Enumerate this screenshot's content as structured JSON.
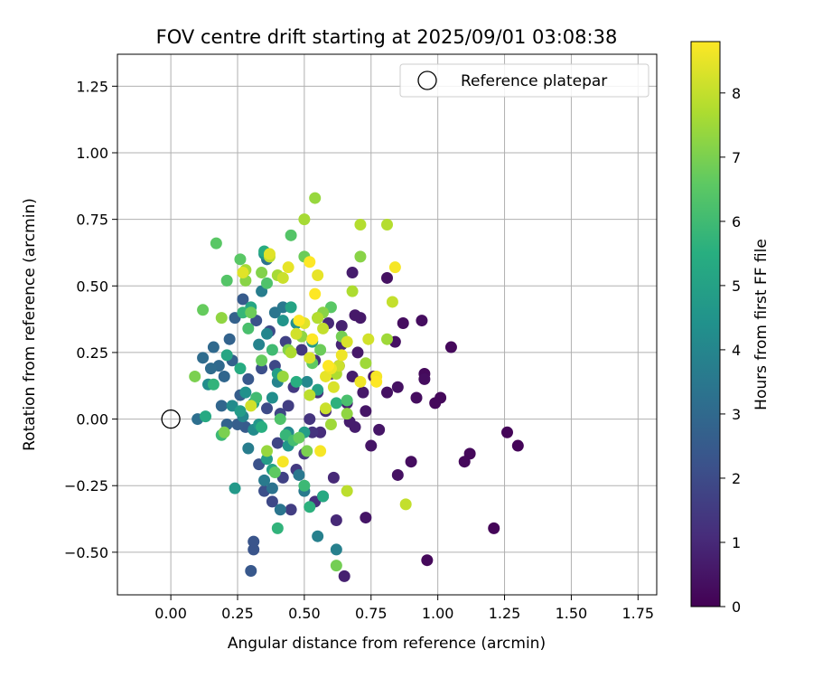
{
  "chart_data": {
    "type": "scatter",
    "title": "FOV centre drift starting at 2025/09/01 03:08:38",
    "xlabel": "Angular distance from reference (arcmin)",
    "ylabel": "Rotation from reference (arcmin)",
    "xlim": [
      -0.2,
      1.82
    ],
    "ylim": [
      -0.66,
      1.37
    ],
    "xticks": [
      "0.00",
      "0.25",
      "0.50",
      "0.75",
      "1.00",
      "1.25",
      "1.50",
      "1.75"
    ],
    "xtick_values": [
      0,
      0.25,
      0.5,
      0.75,
      1.0,
      1.25,
      1.5,
      1.75
    ],
    "yticks": [
      "−0.50",
      "−0.25",
      "0.00",
      "0.25",
      "0.50",
      "0.75",
      "1.00",
      "1.25"
    ],
    "ytick_values": [
      -0.5,
      -0.25,
      0,
      0.25,
      0.5,
      0.75,
      1.0,
      1.25
    ],
    "grid": true,
    "colormap": "viridis",
    "colorbar": {
      "label": "Hours from first FF file",
      "min": 0,
      "max": 8.8,
      "ticks": [
        "0",
        "1",
        "2",
        "3",
        "4",
        "5",
        "6",
        "7",
        "8"
      ],
      "tick_values": [
        0,
        1,
        2,
        3,
        4,
        5,
        6,
        7,
        8
      ]
    },
    "legend": {
      "position": "top-right",
      "entries": [
        {
          "label": "Reference platepar",
          "marker": "open-circle"
        }
      ]
    },
    "reference_point": {
      "x": 0,
      "y": 0
    },
    "points": [
      [
        1.3,
        -0.1,
        0.1
      ],
      [
        1.26,
        -0.05,
        0.1
      ],
      [
        1.21,
        -0.41,
        0.1
      ],
      [
        1.12,
        -0.13,
        0.2
      ],
      [
        1.1,
        -0.16,
        0.2
      ],
      [
        1.05,
        0.27,
        0.2
      ],
      [
        1.01,
        0.08,
        0.2
      ],
      [
        0.99,
        0.06,
        0.2
      ],
      [
        0.96,
        -0.53,
        0.2
      ],
      [
        0.95,
        0.17,
        0.2
      ],
      [
        0.95,
        0.15,
        0.3
      ],
      [
        0.94,
        0.37,
        0.3
      ],
      [
        0.92,
        0.08,
        0.3
      ],
      [
        0.9,
        -0.16,
        0.3
      ],
      [
        0.87,
        0.36,
        0.3
      ],
      [
        0.85,
        -0.21,
        0.4
      ],
      [
        0.85,
        0.12,
        0.4
      ],
      [
        0.84,
        0.29,
        0.4
      ],
      [
        0.81,
        0.53,
        0.4
      ],
      [
        0.81,
        0.1,
        0.4
      ],
      [
        0.78,
        -0.04,
        0.5
      ],
      [
        0.76,
        0.16,
        0.5
      ],
      [
        0.75,
        -0.1,
        0.5
      ],
      [
        0.73,
        -0.37,
        0.5
      ],
      [
        0.73,
        0.03,
        0.5
      ],
      [
        0.72,
        0.1,
        0.6
      ],
      [
        0.71,
        0.38,
        0.6
      ],
      [
        0.7,
        0.25,
        0.6
      ],
      [
        0.69,
        0.39,
        0.6
      ],
      [
        0.69,
        -0.03,
        0.7
      ],
      [
        0.68,
        0.55,
        0.7
      ],
      [
        0.68,
        0.16,
        0.7
      ],
      [
        0.67,
        -0.01,
        0.7
      ],
      [
        0.66,
        0.06,
        0.8
      ],
      [
        0.65,
        -0.59,
        0.8
      ],
      [
        0.64,
        0.35,
        0.8
      ],
      [
        0.64,
        0.28,
        0.9
      ],
      [
        0.63,
        0.2,
        0.9
      ],
      [
        0.62,
        -0.38,
        1.0
      ],
      [
        0.61,
        -0.22,
        1.0
      ],
      [
        0.6,
        0.17,
        1.0
      ],
      [
        0.59,
        0.36,
        1.0
      ],
      [
        0.58,
        0.03,
        1.1
      ],
      [
        0.57,
        -0.29,
        1.1
      ],
      [
        0.56,
        -0.05,
        1.1
      ],
      [
        0.55,
        0.1,
        1.2
      ],
      [
        0.54,
        -0.31,
        1.2
      ],
      [
        0.54,
        0.22,
        1.2
      ],
      [
        0.53,
        -0.05,
        1.3
      ],
      [
        0.52,
        0.0,
        1.3
      ],
      [
        0.5,
        -0.13,
        1.4
      ],
      [
        0.49,
        0.26,
        1.4
      ],
      [
        0.47,
        -0.19,
        1.5
      ],
      [
        0.46,
        0.12,
        1.5
      ],
      [
        0.45,
        -0.34,
        1.6
      ],
      [
        0.44,
        0.05,
        1.6
      ],
      [
        0.43,
        0.29,
        1.7
      ],
      [
        0.42,
        -0.22,
        1.7
      ],
      [
        0.41,
        0.02,
        1.8
      ],
      [
        0.4,
        -0.09,
        1.8
      ],
      [
        0.39,
        0.2,
        1.9
      ],
      [
        0.38,
        -0.31,
        1.9
      ],
      [
        0.37,
        0.33,
        2.0
      ],
      [
        0.36,
        0.04,
        2.0
      ],
      [
        0.35,
        -0.27,
        2.1
      ],
      [
        0.34,
        0.19,
        2.1
      ],
      [
        0.33,
        -0.17,
        2.2
      ],
      [
        0.32,
        0.37,
        2.2
      ],
      [
        0.31,
        -0.49,
        2.3
      ],
      [
        0.31,
        -0.46,
        2.3
      ],
      [
        0.3,
        -0.57,
        2.4
      ],
      [
        0.29,
        0.15,
        2.4
      ],
      [
        0.28,
        -0.03,
        2.5
      ],
      [
        0.27,
        0.45,
        2.5
      ],
      [
        0.26,
        0.09,
        2.6
      ],
      [
        0.25,
        -0.02,
        2.6
      ],
      [
        0.24,
        0.38,
        2.7
      ],
      [
        0.23,
        0.22,
        2.7
      ],
      [
        0.22,
        0.3,
        2.8
      ],
      [
        0.21,
        -0.02,
        2.8
      ],
      [
        0.2,
        0.16,
        2.9
      ],
      [
        0.19,
        0.05,
        2.9
      ],
      [
        0.18,
        0.2,
        3.0
      ],
      [
        0.16,
        0.27,
        3.0
      ],
      [
        0.15,
        0.19,
        3.1
      ],
      [
        0.12,
        0.23,
        3.1
      ],
      [
        0.1,
        0.0,
        3.2
      ],
      [
        0.36,
        0.6,
        3.3
      ],
      [
        0.38,
        -0.26,
        3.3
      ],
      [
        0.39,
        0.4,
        3.4
      ],
      [
        0.41,
        -0.34,
        3.4
      ],
      [
        0.42,
        0.42,
        3.5
      ],
      [
        0.48,
        -0.21,
        3.5
      ],
      [
        0.5,
        -0.27,
        3.6
      ],
      [
        0.35,
        -0.23,
        3.6
      ],
      [
        0.29,
        -0.11,
        3.7
      ],
      [
        0.34,
        0.48,
        3.7
      ],
      [
        0.55,
        -0.44,
        3.8
      ],
      [
        0.62,
        -0.49,
        3.8
      ],
      [
        0.4,
        0.14,
        3.9
      ],
      [
        0.33,
        0.28,
        3.9
      ],
      [
        0.27,
        0.01,
        4.0
      ],
      [
        0.36,
        0.32,
        4.0
      ],
      [
        0.44,
        -0.05,
        4.1
      ],
      [
        0.51,
        0.14,
        4.1
      ],
      [
        0.23,
        0.05,
        4.2
      ],
      [
        0.31,
        -0.04,
        4.2
      ],
      [
        0.14,
        0.13,
        4.3
      ],
      [
        0.38,
        0.08,
        4.3
      ],
      [
        0.47,
        0.36,
        4.4
      ],
      [
        0.28,
        0.1,
        4.4
      ],
      [
        0.42,
        0.37,
        4.5
      ],
      [
        0.35,
        0.62,
        4.5
      ],
      [
        0.33,
        -0.02,
        4.6
      ],
      [
        0.44,
        -0.1,
        4.6
      ],
      [
        0.24,
        -0.26,
        4.7
      ],
      [
        0.53,
        0.29,
        4.7
      ],
      [
        0.26,
        0.03,
        4.8
      ],
      [
        0.36,
        -0.15,
        4.8
      ],
      [
        0.4,
        0.17,
        4.9
      ],
      [
        0.5,
        -0.05,
        4.9
      ],
      [
        0.55,
        0.11,
        5.0
      ],
      [
        0.31,
        0.06,
        5.0
      ],
      [
        0.45,
        0.42,
        5.1
      ],
      [
        0.38,
        -0.19,
        5.1
      ],
      [
        0.3,
        0.42,
        5.2
      ],
      [
        0.21,
        0.24,
        5.2
      ],
      [
        0.13,
        0.01,
        5.3
      ],
      [
        0.57,
        -0.29,
        5.3
      ],
      [
        0.35,
        0.63,
        5.4
      ],
      [
        0.26,
        0.19,
        5.4
      ],
      [
        0.34,
        -0.03,
        5.5
      ],
      [
        0.47,
        0.14,
        5.5
      ],
      [
        0.52,
        -0.33,
        5.6
      ],
      [
        0.62,
        0.06,
        5.6
      ],
      [
        0.16,
        0.13,
        5.7
      ],
      [
        0.4,
        -0.41,
        5.7
      ],
      [
        0.27,
        0.4,
        5.8
      ],
      [
        0.43,
        -0.06,
        5.8
      ],
      [
        0.5,
        -0.25,
        5.9
      ],
      [
        0.19,
        -0.06,
        5.9
      ],
      [
        0.32,
        0.08,
        6.0
      ],
      [
        0.38,
        0.26,
        6.0
      ],
      [
        0.46,
        -0.08,
        6.1
      ],
      [
        0.55,
        0.38,
        6.1
      ],
      [
        0.66,
        0.07,
        6.2
      ],
      [
        0.29,
        0.34,
        6.2
      ],
      [
        0.36,
        0.51,
        6.3
      ],
      [
        0.41,
        0.0,
        6.3
      ],
      [
        0.21,
        0.52,
        6.4
      ],
      [
        0.45,
        0.69,
        6.4
      ],
      [
        0.26,
        0.6,
        6.5
      ],
      [
        0.17,
        0.66,
        6.5
      ],
      [
        0.6,
        0.42,
        6.5
      ],
      [
        0.53,
        0.21,
        6.6
      ],
      [
        0.39,
        -0.2,
        6.6
      ],
      [
        0.34,
        0.22,
        6.7
      ],
      [
        0.48,
        -0.07,
        6.7
      ],
      [
        0.12,
        0.41,
        6.7
      ],
      [
        0.3,
        0.4,
        6.8
      ],
      [
        0.56,
        0.26,
        6.8
      ],
      [
        0.5,
        0.61,
        6.8
      ],
      [
        0.64,
        0.31,
        6.9
      ],
      [
        0.62,
        -0.55,
        6.9
      ],
      [
        0.2,
        -0.05,
        7.0
      ],
      [
        0.09,
        0.16,
        7.0
      ],
      [
        0.51,
        -0.12,
        7.0
      ],
      [
        0.44,
        0.26,
        7.1
      ],
      [
        0.34,
        0.55,
        7.1
      ],
      [
        0.28,
        0.52,
        7.2
      ],
      [
        0.57,
        0.4,
        7.2
      ],
      [
        0.71,
        0.61,
        7.2
      ],
      [
        0.49,
        0.31,
        7.3
      ],
      [
        0.66,
        0.02,
        7.3
      ],
      [
        0.19,
        0.38,
        7.3
      ],
      [
        0.36,
        -0.12,
        7.4
      ],
      [
        0.42,
        0.16,
        7.4
      ],
      [
        0.54,
        0.83,
        7.4
      ],
      [
        0.6,
        -0.02,
        7.5
      ],
      [
        0.73,
        0.21,
        7.5
      ],
      [
        0.81,
        0.3,
        7.5
      ],
      [
        0.28,
        0.56,
        7.6
      ],
      [
        0.5,
        0.75,
        7.6
      ],
      [
        0.4,
        0.54,
        7.6
      ],
      [
        0.68,
        0.48,
        7.7
      ],
      [
        0.62,
        0.17,
        7.7
      ],
      [
        0.45,
        0.25,
        7.7
      ],
      [
        0.71,
        0.73,
        7.8
      ],
      [
        0.81,
        0.73,
        7.8
      ],
      [
        0.55,
        0.38,
        7.8
      ],
      [
        0.37,
        0.61,
        7.9
      ],
      [
        0.66,
        -0.27,
        7.9
      ],
      [
        0.52,
        0.09,
        7.9
      ],
      [
        0.57,
        0.34,
        8.0
      ],
      [
        0.83,
        0.44,
        8.0
      ],
      [
        0.88,
        -0.32,
        8.0
      ],
      [
        0.42,
        0.53,
        8.1
      ],
      [
        0.63,
        0.2,
        8.1
      ],
      [
        0.58,
        0.04,
        8.1
      ],
      [
        0.74,
        0.3,
        8.2
      ],
      [
        0.3,
        0.05,
        8.2
      ],
      [
        0.47,
        0.32,
        8.2
      ],
      [
        0.52,
        0.23,
        8.3
      ],
      [
        0.61,
        0.12,
        8.3
      ],
      [
        0.66,
        0.29,
        8.3
      ],
      [
        0.5,
        0.36,
        8.4
      ],
      [
        0.37,
        0.62,
        8.4
      ],
      [
        0.27,
        0.55,
        8.4
      ],
      [
        0.58,
        0.16,
        8.5
      ],
      [
        0.55,
        0.54,
        8.5
      ],
      [
        0.44,
        0.57,
        8.5
      ],
      [
        0.6,
        0.19,
        8.6
      ],
      [
        0.71,
        0.14,
        8.6
      ],
      [
        0.64,
        0.24,
        8.6
      ],
      [
        0.77,
        0.16,
        8.7
      ],
      [
        0.56,
        -0.12,
        8.7
      ],
      [
        0.42,
        -0.16,
        8.7
      ],
      [
        0.84,
        0.57,
        8.7
      ],
      [
        0.48,
        0.37,
        8.8
      ],
      [
        0.53,
        0.3,
        8.8
      ],
      [
        0.77,
        0.14,
        8.8
      ],
      [
        0.59,
        0.2,
        8.8
      ],
      [
        0.52,
        0.59,
        8.8
      ],
      [
        0.54,
        0.47,
        8.8
      ]
    ]
  }
}
